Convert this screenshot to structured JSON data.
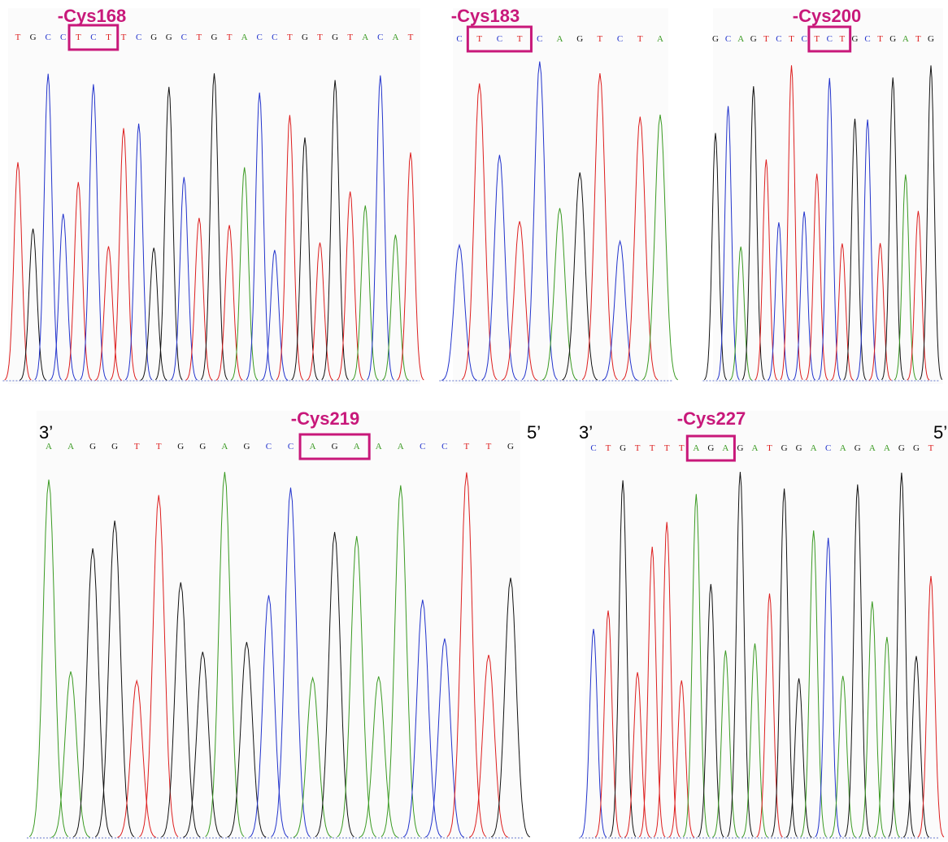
{
  "panels": [
    {
      "label": "-Cys168",
      "sequence": [
        "T",
        "G",
        "C",
        "C",
        "T",
        "C",
        "T",
        "T",
        "C",
        "G",
        "G",
        "C",
        "T",
        "G",
        "T",
        "A",
        "C",
        "C",
        "T",
        "G",
        "T",
        "G",
        "T",
        "A",
        "C",
        "A",
        "T"
      ],
      "boxed": [
        4,
        6
      ]
    },
    {
      "label": "-Cys183",
      "sequence": [
        "C",
        "T",
        "C",
        "T",
        "C",
        "A",
        "G",
        "T",
        "C",
        "T",
        "A"
      ],
      "boxed": [
        1,
        3
      ]
    },
    {
      "label": "-Cys200",
      "sequence": [
        "G",
        "C",
        "A",
        "G",
        "T",
        "C",
        "T",
        "C",
        "T",
        "C",
        "T",
        "G",
        "C",
        "T",
        "G",
        "A",
        "T",
        "G"
      ],
      "boxed": [
        8,
        10
      ]
    },
    {
      "label": "-Cys219",
      "left_end": "3’",
      "right_end": "5’",
      "sequence": [
        "A",
        "A",
        "G",
        "G",
        "T",
        "T",
        "G",
        "G",
        "A",
        "G",
        "C",
        "C",
        "A",
        "G",
        "A",
        "A",
        "A",
        "C",
        "C",
        "T",
        "T",
        "G"
      ],
      "boxed": [
        12,
        14
      ]
    },
    {
      "label": "-Cys227",
      "left_end": "3’",
      "right_end": "5’",
      "sequence": [
        "C",
        "T",
        "G",
        "T",
        "T",
        "T",
        "T",
        "A",
        "G",
        "A",
        "G",
        "A",
        "T",
        "G",
        "G",
        "A",
        "C",
        "A",
        "G",
        "A",
        "A",
        "G",
        "G",
        "T"
      ],
      "boxed": [
        7,
        9
      ]
    }
  ]
}
